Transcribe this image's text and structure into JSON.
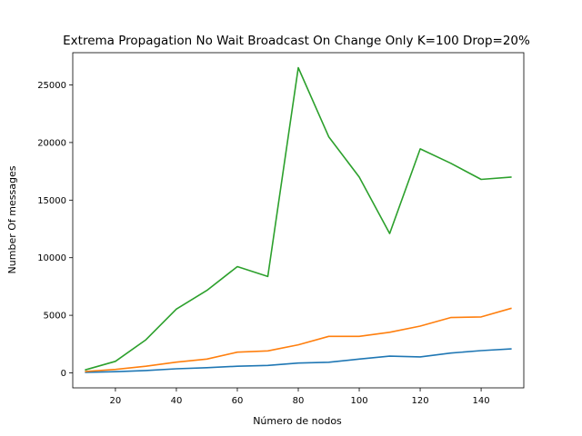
{
  "chart_data": {
    "type": "line",
    "title": "Extrema Propagation No Wait Broadcast On Change Only K=100 Drop=20%",
    "xlabel": "Número de nodos",
    "ylabel": "Number Of messages",
    "xlim": [
      6,
      154
    ],
    "ylim": [
      -1300,
      27800
    ],
    "x_ticks": [
      20,
      40,
      60,
      80,
      100,
      120,
      140
    ],
    "y_ticks": [
      0,
      5000,
      10000,
      15000,
      20000,
      25000
    ],
    "grid": false,
    "legend": "none",
    "x": [
      10,
      20,
      30,
      40,
      50,
      60,
      70,
      80,
      90,
      100,
      110,
      120,
      130,
      140,
      150
    ],
    "series": [
      {
        "color": "#1f77b4",
        "values": [
          50,
          100,
          210,
          360,
          450,
          580,
          650,
          850,
          920,
          1200,
          1450,
          1390,
          1720,
          1930,
          2080
        ]
      },
      {
        "color": "#ff7f0e",
        "values": [
          120,
          300,
          580,
          930,
          1200,
          1800,
          1910,
          2440,
          3170,
          3170,
          3530,
          4060,
          4800,
          4860,
          5620
        ]
      },
      {
        "color": "#2ca02c",
        "values": [
          250,
          1000,
          2870,
          5540,
          7160,
          9230,
          8370,
          26500,
          20500,
          17000,
          12100,
          19450,
          18200,
          16800,
          17000
        ]
      }
    ]
  }
}
